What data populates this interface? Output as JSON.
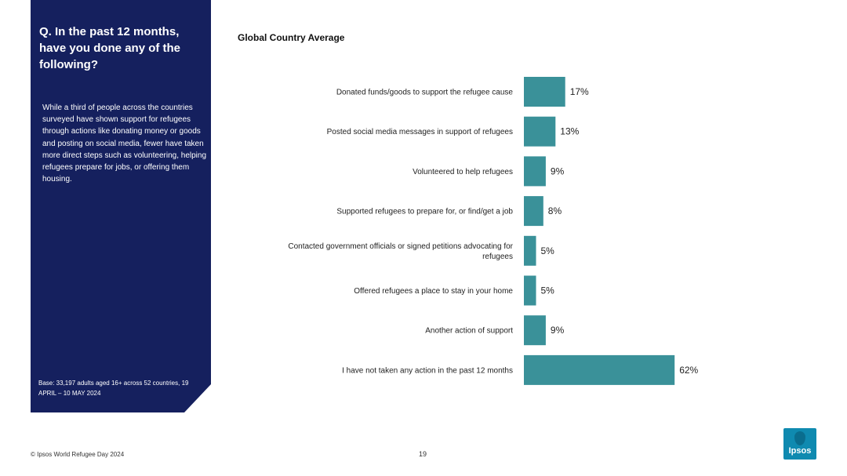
{
  "panel": {
    "title": "Q. In the past 12 months, have you done any of the following?",
    "description": "While a third of people across the countries surveyed have shown support for refugees through actions like donating money or goods and posting on social media, fewer have taken more direct steps such as volunteering, helping refugees prepare for jobs, or offering them housing.",
    "base": "Base: 33,197 adults aged 16+ across 52 countries, 19 APRIL – 10 MAY 2024"
  },
  "chart_data": {
    "type": "bar",
    "orientation": "horizontal",
    "title": "Global Country Average",
    "categories": [
      "Donated funds/goods to support the refugee cause",
      "Posted social media messages in support of refugees",
      "Volunteered to help refugees",
      "Supported refugees to prepare for, or find/get a job",
      "Contacted government officials or signed petitions advocating for refugees",
      "Offered refugees a place to stay in your home",
      "Another action of support",
      "I have not taken any action in the past 12 months"
    ],
    "category_lines": [
      [
        "Donated funds/goods to support the refugee cause"
      ],
      [
        "Posted social media messages in support of refugees"
      ],
      [
        "Volunteered to help refugees"
      ],
      [
        "Supported refugees to prepare for, or find/get a job"
      ],
      [
        "Contacted government officials or signed petitions advocating for",
        "refugees"
      ],
      [
        "Offered refugees a place to stay in your home"
      ],
      [
        "Another action of support"
      ],
      [
        "I have not taken any action in the past 12 months"
      ]
    ],
    "values": [
      17,
      13,
      9,
      8,
      5,
      5,
      9,
      62
    ],
    "value_labels": [
      "17%",
      "13%",
      "9%",
      "8%",
      "5%",
      "5%",
      "9%",
      "62%"
    ],
    "bar_color": "#3a9199",
    "xlim": [
      0,
      100
    ],
    "grid": false,
    "legend": "none"
  },
  "footer": {
    "copyright": "© Ipsos World Refugee Day 2024",
    "page_number": "19"
  },
  "logo": {
    "text": "Ipsos",
    "icon": "ipsos-logo-icon"
  },
  "colors": {
    "panel": "#15205e",
    "bar": "#3a9199",
    "logo": "#0f8ab0"
  }
}
